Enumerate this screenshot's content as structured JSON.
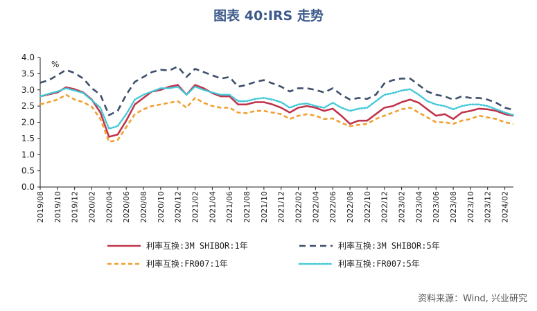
{
  "title": "图表 40:IRS 走势",
  "source": "资料来源：Wind, 兴业研究",
  "chart_data": {
    "type": "line",
    "unit": "%",
    "ylim": [
      0,
      4
    ],
    "yticks": [
      "4.0",
      "3.5",
      "3.0",
      "2.5",
      "2.0",
      "1.5",
      "1.0",
      "0.5",
      "0.0"
    ],
    "x_labels": [
      "2019/08",
      "2019/10",
      "2019/12",
      "2020/02",
      "2020/04",
      "2020/06",
      "2020/08",
      "2020/10",
      "2020/12",
      "2021/02",
      "2021/04",
      "2021/06",
      "2021/08",
      "2021/10",
      "2021/12",
      "2022/02",
      "2022/04",
      "2022/06",
      "2022/08",
      "2022/10",
      "2022/12",
      "2023/02",
      "2023/04",
      "2023/06",
      "2023/08",
      "2023/10",
      "2023/12",
      "2024/02"
    ],
    "x_range": [
      "2019/08",
      "2024/03"
    ],
    "legend_position": "bottom",
    "series": [
      {
        "name": "利率互换:3M SHIBOR:1年",
        "color": "#c0344a",
        "dash": "solid",
        "points": [
          [
            "2019/08",
            2.8
          ],
          [
            "2019/10",
            2.92
          ],
          [
            "2019/11",
            3.08
          ],
          [
            "2019/12",
            3.02
          ],
          [
            "2020/01",
            2.92
          ],
          [
            "2020/02",
            2.7
          ],
          [
            "2020/03",
            2.3
          ],
          [
            "2020/04",
            1.55
          ],
          [
            "2020/05",
            1.62
          ],
          [
            "2020/06",
            2.05
          ],
          [
            "2020/07",
            2.55
          ],
          [
            "2020/08",
            2.75
          ],
          [
            "2020/09",
            2.95
          ],
          [
            "2020/10",
            3.0
          ],
          [
            "2020/11",
            3.1
          ],
          [
            "2020/12",
            3.15
          ],
          [
            "2021/01",
            2.85
          ],
          [
            "2021/02",
            3.15
          ],
          [
            "2021/03",
            3.05
          ],
          [
            "2021/04",
            2.9
          ],
          [
            "2021/05",
            2.8
          ],
          [
            "2021/06",
            2.8
          ],
          [
            "2021/07",
            2.55
          ],
          [
            "2021/08",
            2.55
          ],
          [
            "2021/09",
            2.62
          ],
          [
            "2021/10",
            2.62
          ],
          [
            "2021/11",
            2.55
          ],
          [
            "2021/12",
            2.45
          ],
          [
            "2022/01",
            2.3
          ],
          [
            "2022/02",
            2.45
          ],
          [
            "2022/03",
            2.5
          ],
          [
            "2022/04",
            2.45
          ],
          [
            "2022/05",
            2.35
          ],
          [
            "2022/06",
            2.42
          ],
          [
            "2022/07",
            2.2
          ],
          [
            "2022/08",
            1.95
          ],
          [
            "2022/09",
            2.05
          ],
          [
            "2022/10",
            2.05
          ],
          [
            "2022/11",
            2.25
          ],
          [
            "2022/12",
            2.45
          ],
          [
            "2023/01",
            2.5
          ],
          [
            "2023/02",
            2.62
          ],
          [
            "2023/03",
            2.7
          ],
          [
            "2023/04",
            2.6
          ],
          [
            "2023/05",
            2.4
          ],
          [
            "2023/06",
            2.2
          ],
          [
            "2023/07",
            2.25
          ],
          [
            "2023/08",
            2.1
          ],
          [
            "2023/09",
            2.3
          ],
          [
            "2023/10",
            2.35
          ],
          [
            "2023/11",
            2.42
          ],
          [
            "2023/12",
            2.4
          ],
          [
            "2024/01",
            2.35
          ],
          [
            "2024/02",
            2.25
          ],
          [
            "2024/03",
            2.2
          ]
        ]
      },
      {
        "name": "利率互换:3M SHIBOR:5年",
        "color": "#3d4f6b",
        "dash": "long",
        "points": [
          [
            "2019/08",
            3.22
          ],
          [
            "2019/09",
            3.3
          ],
          [
            "2019/10",
            3.45
          ],
          [
            "2019/11",
            3.62
          ],
          [
            "2019/12",
            3.52
          ],
          [
            "2020/01",
            3.35
          ],
          [
            "2020/02",
            3.05
          ],
          [
            "2020/03",
            2.85
          ],
          [
            "2020/04",
            2.22
          ],
          [
            "2020/05",
            2.35
          ],
          [
            "2020/06",
            2.85
          ],
          [
            "2020/07",
            3.25
          ],
          [
            "2020/08",
            3.4
          ],
          [
            "2020/09",
            3.55
          ],
          [
            "2020/10",
            3.62
          ],
          [
            "2020/11",
            3.6
          ],
          [
            "2020/12",
            3.72
          ],
          [
            "2021/01",
            3.4
          ],
          [
            "2021/02",
            3.65
          ],
          [
            "2021/03",
            3.55
          ],
          [
            "2021/04",
            3.45
          ],
          [
            "2021/05",
            3.35
          ],
          [
            "2021/06",
            3.4
          ],
          [
            "2021/07",
            3.1
          ],
          [
            "2021/08",
            3.15
          ],
          [
            "2021/09",
            3.25
          ],
          [
            "2021/10",
            3.3
          ],
          [
            "2021/11",
            3.2
          ],
          [
            "2021/12",
            3.1
          ],
          [
            "2022/01",
            2.95
          ],
          [
            "2022/02",
            3.05
          ],
          [
            "2022/03",
            3.05
          ],
          [
            "2022/04",
            3.0
          ],
          [
            "2022/05",
            2.92
          ],
          [
            "2022/06",
            3.05
          ],
          [
            "2022/07",
            2.85
          ],
          [
            "2022/08",
            2.7
          ],
          [
            "2022/09",
            2.75
          ],
          [
            "2022/10",
            2.72
          ],
          [
            "2022/11",
            2.85
          ],
          [
            "2022/12",
            3.2
          ],
          [
            "2023/01",
            3.3
          ],
          [
            "2023/02",
            3.35
          ],
          [
            "2023/03",
            3.35
          ],
          [
            "2023/04",
            3.15
          ],
          [
            "2023/05",
            2.95
          ],
          [
            "2023/06",
            2.85
          ],
          [
            "2023/07",
            2.8
          ],
          [
            "2023/08",
            2.7
          ],
          [
            "2023/09",
            2.8
          ],
          [
            "2023/10",
            2.75
          ],
          [
            "2023/11",
            2.75
          ],
          [
            "2023/12",
            2.7
          ],
          [
            "2024/01",
            2.6
          ],
          [
            "2024/02",
            2.45
          ],
          [
            "2024/03",
            2.38
          ]
        ]
      },
      {
        "name": "利率互换:FR007:1年",
        "color": "#f0a030",
        "dash": "medium",
        "points": [
          [
            "2019/08",
            2.55
          ],
          [
            "2019/09",
            2.62
          ],
          [
            "2019/10",
            2.7
          ],
          [
            "2019/11",
            2.85
          ],
          [
            "2019/12",
            2.7
          ],
          [
            "2020/01",
            2.62
          ],
          [
            "2020/02",
            2.48
          ],
          [
            "2020/03",
            2.1
          ],
          [
            "2020/04",
            1.4
          ],
          [
            "2020/05",
            1.45
          ],
          [
            "2020/06",
            1.85
          ],
          [
            "2020/07",
            2.25
          ],
          [
            "2020/08",
            2.4
          ],
          [
            "2020/09",
            2.5
          ],
          [
            "2020/10",
            2.55
          ],
          [
            "2020/11",
            2.6
          ],
          [
            "2020/12",
            2.65
          ],
          [
            "2021/01",
            2.45
          ],
          [
            "2021/02",
            2.75
          ],
          [
            "2021/03",
            2.6
          ],
          [
            "2021/04",
            2.5
          ],
          [
            "2021/05",
            2.45
          ],
          [
            "2021/06",
            2.45
          ],
          [
            "2021/07",
            2.3
          ],
          [
            "2021/08",
            2.28
          ],
          [
            "2021/09",
            2.35
          ],
          [
            "2021/10",
            2.35
          ],
          [
            "2021/11",
            2.3
          ],
          [
            "2021/12",
            2.25
          ],
          [
            "2022/01",
            2.1
          ],
          [
            "2022/02",
            2.2
          ],
          [
            "2022/03",
            2.25
          ],
          [
            "2022/04",
            2.2
          ],
          [
            "2022/05",
            2.1
          ],
          [
            "2022/06",
            2.12
          ],
          [
            "2022/07",
            1.98
          ],
          [
            "2022/08",
            1.88
          ],
          [
            "2022/09",
            1.92
          ],
          [
            "2022/10",
            1.95
          ],
          [
            "2022/11",
            2.1
          ],
          [
            "2022/12",
            2.2
          ],
          [
            "2023/01",
            2.3
          ],
          [
            "2023/02",
            2.4
          ],
          [
            "2023/03",
            2.45
          ],
          [
            "2023/04",
            2.3
          ],
          [
            "2023/05",
            2.15
          ],
          [
            "2023/06",
            2.0
          ],
          [
            "2023/07",
            2.0
          ],
          [
            "2023/08",
            1.95
          ],
          [
            "2023/09",
            2.05
          ],
          [
            "2023/10",
            2.1
          ],
          [
            "2023/11",
            2.2
          ],
          [
            "2023/12",
            2.15
          ],
          [
            "2024/01",
            2.1
          ],
          [
            "2024/02",
            2.0
          ],
          [
            "2024/03",
            1.95
          ]
        ]
      },
      {
        "name": "利率互换:FR007:5年",
        "color": "#40c8d8",
        "dash": "dot",
        "points": [
          [
            "2019/08",
            2.8
          ],
          [
            "2019/09",
            2.88
          ],
          [
            "2019/10",
            2.95
          ],
          [
            "2019/11",
            3.05
          ],
          [
            "2019/12",
            2.98
          ],
          [
            "2020/01",
            2.9
          ],
          [
            "2020/02",
            2.68
          ],
          [
            "2020/03",
            2.45
          ],
          [
            "2020/04",
            1.8
          ],
          [
            "2020/05",
            1.88
          ],
          [
            "2020/06",
            2.25
          ],
          [
            "2020/07",
            2.7
          ],
          [
            "2020/08",
            2.85
          ],
          [
            "2020/09",
            2.95
          ],
          [
            "2020/10",
            3.05
          ],
          [
            "2020/11",
            3.05
          ],
          [
            "2020/12",
            3.1
          ],
          [
            "2021/01",
            2.85
          ],
          [
            "2021/02",
            3.1
          ],
          [
            "2021/03",
            3.0
          ],
          [
            "2021/04",
            2.92
          ],
          [
            "2021/05",
            2.85
          ],
          [
            "2021/06",
            2.85
          ],
          [
            "2021/07",
            2.65
          ],
          [
            "2021/08",
            2.65
          ],
          [
            "2021/09",
            2.72
          ],
          [
            "2021/10",
            2.75
          ],
          [
            "2021/11",
            2.7
          ],
          [
            "2021/12",
            2.62
          ],
          [
            "2022/01",
            2.45
          ],
          [
            "2022/02",
            2.55
          ],
          [
            "2022/03",
            2.58
          ],
          [
            "2022/04",
            2.5
          ],
          [
            "2022/05",
            2.45
          ],
          [
            "2022/06",
            2.6
          ],
          [
            "2022/07",
            2.45
          ],
          [
            "2022/08",
            2.35
          ],
          [
            "2022/09",
            2.42
          ],
          [
            "2022/10",
            2.45
          ],
          [
            "2022/11",
            2.65
          ],
          [
            "2022/12",
            2.85
          ],
          [
            "2023/01",
            2.9
          ],
          [
            "2023/02",
            2.98
          ],
          [
            "2023/03",
            3.02
          ],
          [
            "2023/04",
            2.85
          ],
          [
            "2023/05",
            2.65
          ],
          [
            "2023/06",
            2.55
          ],
          [
            "2023/07",
            2.5
          ],
          [
            "2023/08",
            2.4
          ],
          [
            "2023/09",
            2.5
          ],
          [
            "2023/10",
            2.55
          ],
          [
            "2023/11",
            2.55
          ],
          [
            "2023/12",
            2.5
          ],
          [
            "2024/01",
            2.4
          ],
          [
            "2024/02",
            2.3
          ],
          [
            "2024/03",
            2.22
          ]
        ]
      }
    ]
  }
}
